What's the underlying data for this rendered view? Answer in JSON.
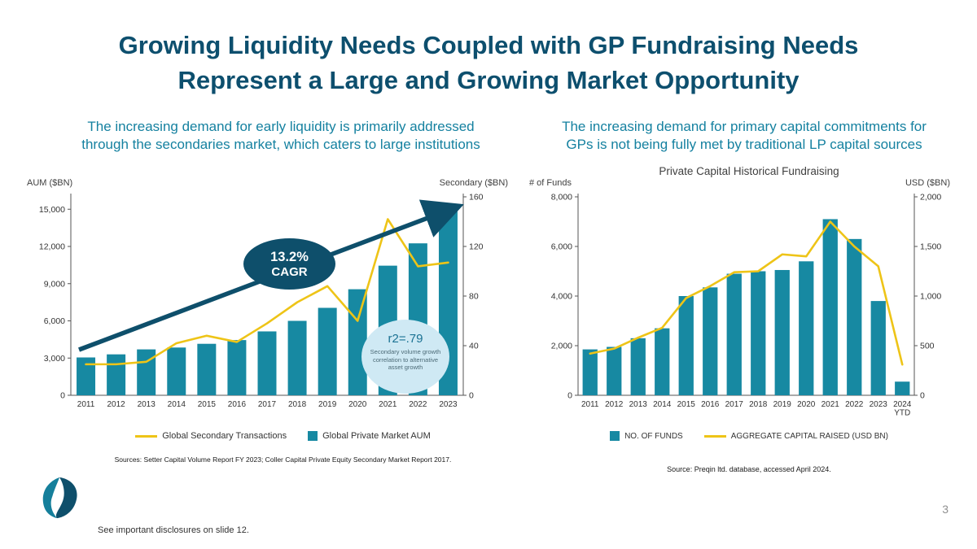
{
  "slide": {
    "title_line1": "Growing Liquidity Needs Coupled with GP Fundraising Needs",
    "title_line2": "Represent a Large and Growing Market Opportunity",
    "page_number": "3",
    "disclosure": "See important disclosures on slide 12."
  },
  "colors": {
    "title": "#0D4F6E",
    "subtitle": "#1581A0",
    "bar": "#1789A2",
    "line": "#EEC417",
    "navy": "#0E4F6B",
    "bubble_light": "#CFE9F4"
  },
  "left_panel": {
    "subtitle_line1": "The increasing demand for early liquidity is primarily addressed",
    "subtitle_line2": "through the secondaries market, which caters to large institutions",
    "source": "Sources: Setter Capital Volume Report FY 2023; Coller Capital Private Equity Secondary Market Report 2017."
  },
  "right_panel": {
    "subtitle_line1": "The increasing demand for primary capital commitments for",
    "subtitle_line2": "GPs is not being fully met by traditional LP capital sources",
    "source": "Source: Preqin ltd. database, accessed April 2024."
  },
  "chart_data": [
    {
      "id": "secondaries-market-chart",
      "type": "bar+line",
      "title": "",
      "categories": [
        "2011",
        "2012",
        "2013",
        "2014",
        "2015",
        "2016",
        "2017",
        "2018",
        "2019",
        "2020",
        "2021",
        "2022",
        "2023"
      ],
      "series": [
        {
          "name": "Global Private Market AUM",
          "type": "bar",
          "axis": "left",
          "values": [
            3050,
            3300,
            3700,
            3850,
            4150,
            4450,
            5150,
            6000,
            7050,
            8550,
            10450,
            12250,
            15300
          ]
        },
        {
          "name": "Global Secondary Transactions",
          "type": "line",
          "axis": "right",
          "values": [
            25,
            25,
            27,
            42,
            48,
            43,
            58,
            75,
            88,
            60,
            142,
            104,
            107
          ]
        }
      ],
      "left_axis": {
        "label": "AUM ($BN)",
        "min": 0,
        "max": 16000,
        "ticks": [
          0,
          3000,
          6000,
          9000,
          12000,
          15000
        ]
      },
      "right_axis": {
        "label": "Secondary ($BN)",
        "min": 0,
        "max": 160,
        "ticks": [
          0,
          40,
          80,
          120,
          160
        ]
      },
      "grid": false,
      "legend_position": "bottom",
      "annotations": {
        "cagr": {
          "line1": "13.2%",
          "line2": "CAGR"
        },
        "r2": {
          "value": "r2=.79",
          "note_line1": "Secondary volume growth",
          "note_line2": "correlation to alternative",
          "note_line3": "asset growth"
        }
      }
    },
    {
      "id": "fundraising-chart",
      "type": "bar+line",
      "title": "Private Capital Historical Fundraising",
      "categories": [
        "2011",
        "2012",
        "2013",
        "2014",
        "2015",
        "2016",
        "2017",
        "2018",
        "2019",
        "2020",
        "2021",
        "2022",
        "2023",
        "2024\nYTD"
      ],
      "series": [
        {
          "name": "NO. OF FUNDS",
          "type": "bar",
          "axis": "left",
          "values": [
            1850,
            1950,
            2300,
            2700,
            4000,
            4350,
            4900,
            5000,
            5050,
            5400,
            7100,
            6300,
            3800,
            550
          ]
        },
        {
          "name": "AGGREGATE CAPITAL RAISED (USD BN)",
          "type": "line",
          "axis": "right",
          "values": [
            420,
            470,
            580,
            680,
            980,
            1100,
            1240,
            1250,
            1420,
            1400,
            1750,
            1500,
            1300,
            310
          ]
        }
      ],
      "left_axis": {
        "label": "# of Funds",
        "min": 0,
        "max": 8000,
        "ticks": [
          0,
          2000,
          4000,
          6000,
          8000
        ]
      },
      "right_axis": {
        "label": "USD ($BN)",
        "min": 0,
        "max": 2000,
        "ticks": [
          0,
          500,
          1000,
          1500,
          2000
        ]
      },
      "grid": false,
      "legend_position": "bottom"
    }
  ]
}
